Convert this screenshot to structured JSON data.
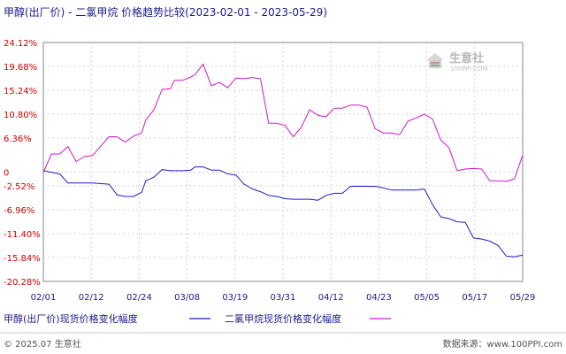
{
  "chart_data": {
    "type": "line",
    "title": "甲醇(出厂价) - 二氯甲烷 价格趋势比较(2023-02-01 - 2023-05-29)",
    "y_ticks": [
      24.12,
      19.68,
      15.24,
      10.8,
      6.36,
      0,
      -2.52,
      -6.96,
      -11.4,
      -15.84,
      -20.28
    ],
    "y_tick_labels": [
      "24.12%",
      "19.68%",
      "15.24%",
      "10.80%",
      "6.36%",
      "0",
      "-2.52%",
      "-6.96%",
      "-11.40%",
      "-15.84%",
      "-20.28%"
    ],
    "x_tick_labels": [
      "02/01",
      "02/12",
      "02/24",
      "03/08",
      "03/19",
      "03/31",
      "04/12",
      "04/23",
      "05/05",
      "05/17",
      "05/29"
    ],
    "ylim": [
      -20.28,
      24.12
    ],
    "grid": true,
    "legend_position": "bottom",
    "series": [
      {
        "name": "甲醇(出厂价)现货价格变化幅度",
        "color": "#1c1cc8",
        "x": [
          0,
          4,
          6,
          8,
          10,
          12,
          16,
          18,
          20,
          22,
          24,
          25,
          27,
          29,
          31,
          32,
          34,
          36,
          37,
          39,
          41,
          43,
          45,
          47,
          49,
          51,
          53,
          55,
          57,
          59,
          61,
          63,
          65,
          67,
          69,
          71,
          73,
          75,
          77,
          79,
          81,
          83,
          85,
          87,
          89,
          91,
          93,
          95,
          97,
          99,
          101,
          103,
          105,
          107,
          109,
          111,
          113,
          115,
          117
        ],
        "y": [
          0.3,
          -0.3,
          -2.0,
          -2.0,
          -2.0,
          -2.0,
          -2.2,
          -4.2,
          -4.5,
          -4.5,
          -3.7,
          -1.6,
          -0.9,
          0.5,
          0.3,
          0.3,
          0.3,
          0.4,
          1.0,
          1.0,
          0.4,
          0.4,
          -0.3,
          -0.5,
          -2.2,
          -3.1,
          -3.6,
          -4.3,
          -4.5,
          -4.9,
          -5.0,
          -5.0,
          -5.0,
          -5.2,
          -4.3,
          -3.9,
          -3.9,
          -2.6,
          -2.6,
          -2.6,
          -2.6,
          -2.9,
          -3.3,
          -3.3,
          -3.3,
          -3.3,
          -3.1,
          -6.0,
          -8.3,
          -8.6,
          -9.2,
          -9.3,
          -12.2,
          -12.4,
          -12.8,
          -13.6,
          -15.6,
          -15.7,
          -15.4
        ]
      },
      {
        "name": "二氯甲烷现货价格变化幅度",
        "color": "#cc18cc",
        "x": [
          0,
          2,
          4,
          6,
          8,
          10,
          12,
          16,
          18,
          20,
          22,
          24,
          25,
          27,
          29,
          31,
          32,
          34,
          36,
          37,
          39,
          41,
          43,
          45,
          47,
          49,
          51,
          53,
          55,
          57,
          59,
          61,
          63,
          65,
          67,
          69,
          71,
          73,
          75,
          77,
          79,
          81,
          83,
          85,
          87,
          89,
          91,
          93,
          95,
          97,
          99,
          101,
          103,
          105,
          107,
          109,
          111,
          113,
          115,
          117
        ],
        "y": [
          0.0,
          3.4,
          3.4,
          4.8,
          2.0,
          2.9,
          3.1,
          6.6,
          6.6,
          5.6,
          6.7,
          7.3,
          9.7,
          11.6,
          15.4,
          15.5,
          17.1,
          17.1,
          17.7,
          18.1,
          20.1,
          16.1,
          16.7,
          15.7,
          17.5,
          17.4,
          17.6,
          17.4,
          9.1,
          9.1,
          8.7,
          6.6,
          8.4,
          11.6,
          10.6,
          10.3,
          11.9,
          11.9,
          12.5,
          12.5,
          12.1,
          8.1,
          7.3,
          7.3,
          7.0,
          9.5,
          10.1,
          10.8,
          9.9,
          6.0,
          4.6,
          0.3,
          0.6,
          0.7,
          0.6,
          -1.6,
          -1.6,
          -1.7,
          -1.2,
          3.2
        ]
      }
    ]
  },
  "footer": {
    "copyright": "© 2025.07 生意社",
    "website": "数据来源：www.100PPI.com"
  },
  "watermark": {
    "name": "生意社",
    "url": "100PPI.COM"
  }
}
